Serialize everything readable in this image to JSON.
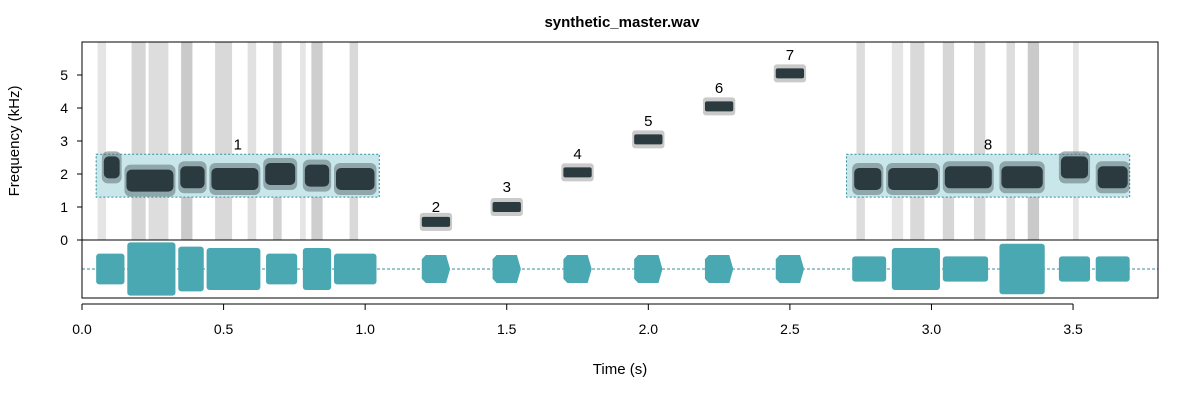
{
  "chart_data": {
    "type": "spectrogram",
    "title": "synthetic_master.wav",
    "xlabel": "Time (s)",
    "ylabel": "Frequency (kHz)",
    "xlim": [
      0.0,
      3.8
    ],
    "ylim": [
      0,
      6
    ],
    "x_ticks": [
      "0.0",
      "0.5",
      "1.0",
      "1.5",
      "2.0",
      "2.5",
      "3.0",
      "3.5"
    ],
    "y_ticks": [
      "0",
      "1",
      "2",
      "3",
      "4",
      "5"
    ],
    "x_tick_values": [
      0.0,
      0.5,
      1.0,
      1.5,
      2.0,
      2.5,
      3.0,
      3.5
    ],
    "y_tick_values": [
      0,
      1,
      2,
      3,
      4,
      5
    ],
    "annotations": [
      {
        "label": "1",
        "x": 0.55,
        "y": 2.9
      },
      {
        "label": "2",
        "x": 1.25,
        "y": 1.0
      },
      {
        "label": "3",
        "x": 1.5,
        "y": 1.6
      },
      {
        "label": "4",
        "x": 1.75,
        "y": 2.6
      },
      {
        "label": "5",
        "x": 2.0,
        "y": 3.6
      },
      {
        "label": "6",
        "x": 2.25,
        "y": 4.6
      },
      {
        "label": "7",
        "x": 2.5,
        "y": 5.6
      },
      {
        "label": "8",
        "x": 3.2,
        "y": 2.9
      }
    ],
    "regions": [
      {
        "t0": 0.05,
        "t1": 1.05,
        "f0": 1.3,
        "f1": 2.6
      },
      {
        "t0": 2.7,
        "t1": 3.7,
        "f0": 1.3,
        "f1": 2.6
      }
    ],
    "tones": [
      {
        "t0": 1.2,
        "t1": 1.3,
        "f": 0.55
      },
      {
        "t0": 1.45,
        "t1": 1.55,
        "f": 1.0
      },
      {
        "t0": 1.7,
        "t1": 1.8,
        "f": 2.05
      },
      {
        "t0": 1.95,
        "t1": 2.05,
        "f": 3.05
      },
      {
        "t0": 2.2,
        "t1": 2.3,
        "f": 4.05
      },
      {
        "t0": 2.45,
        "t1": 2.55,
        "f": 5.05
      }
    ],
    "syllables_1": [
      {
        "t0": 0.07,
        "t1": 0.14,
        "f": 2.2
      },
      {
        "t0": 0.15,
        "t1": 0.33,
        "f": 1.8
      },
      {
        "t0": 0.34,
        "t1": 0.44,
        "f": 1.9
      },
      {
        "t0": 0.45,
        "t1": 0.63,
        "f": 1.85
      },
      {
        "t0": 0.64,
        "t1": 0.76,
        "f": 2.0
      },
      {
        "t0": 0.78,
        "t1": 0.88,
        "f": 1.95
      },
      {
        "t0": 0.89,
        "t1": 1.04,
        "f": 1.85
      }
    ],
    "syllables_8": [
      {
        "t0": 2.72,
        "t1": 2.83,
        "f": 1.85
      },
      {
        "t0": 2.84,
        "t1": 3.03,
        "f": 1.85
      },
      {
        "t0": 3.04,
        "t1": 3.22,
        "f": 1.9
      },
      {
        "t0": 3.24,
        "t1": 3.4,
        "f": 1.9
      },
      {
        "t0": 3.45,
        "t1": 3.56,
        "f": 2.2
      },
      {
        "t0": 3.58,
        "t1": 3.7,
        "f": 1.9
      }
    ],
    "noise_columns": [
      {
        "t": 0.07,
        "w": 0.03,
        "level": 0.35
      },
      {
        "t": 0.2,
        "w": 0.05,
        "level": 0.55
      },
      {
        "t": 0.27,
        "w": 0.07,
        "level": 0.45
      },
      {
        "t": 0.37,
        "w": 0.04,
        "level": 0.7
      },
      {
        "t": 0.5,
        "w": 0.06,
        "level": 0.5
      },
      {
        "t": 0.6,
        "w": 0.03,
        "level": 0.4
      },
      {
        "t": 0.69,
        "w": 0.03,
        "level": 0.6
      },
      {
        "t": 0.78,
        "w": 0.02,
        "level": 0.35
      },
      {
        "t": 0.83,
        "w": 0.04,
        "level": 0.65
      },
      {
        "t": 0.96,
        "w": 0.03,
        "level": 0.5
      },
      {
        "t": 2.75,
        "w": 0.03,
        "level": 0.45
      },
      {
        "t": 2.88,
        "w": 0.04,
        "level": 0.35
      },
      {
        "t": 2.95,
        "w": 0.05,
        "level": 0.5
      },
      {
        "t": 3.06,
        "w": 0.04,
        "level": 0.55
      },
      {
        "t": 3.17,
        "w": 0.04,
        "level": 0.5
      },
      {
        "t": 3.28,
        "w": 0.03,
        "level": 0.45
      },
      {
        "t": 3.36,
        "w": 0.04,
        "level": 0.7
      },
      {
        "t": 3.51,
        "w": 0.02,
        "level": 0.35
      }
    ],
    "waveform_blocks": [
      {
        "t0": 0.05,
        "t1": 0.15,
        "amp": 0.55
      },
      {
        "t0": 0.16,
        "t1": 0.33,
        "amp": 0.95
      },
      {
        "t0": 0.34,
        "t1": 0.43,
        "amp": 0.8
      },
      {
        "t0": 0.44,
        "t1": 0.63,
        "amp": 0.75
      },
      {
        "t0": 0.65,
        "t1": 0.76,
        "amp": 0.55
      },
      {
        "t0": 0.78,
        "t1": 0.88,
        "amp": 0.75
      },
      {
        "t0": 0.89,
        "t1": 1.04,
        "amp": 0.55
      },
      {
        "t0": 1.2,
        "t1": 1.3,
        "amp": 0.5
      },
      {
        "t0": 1.45,
        "t1": 1.55,
        "amp": 0.5
      },
      {
        "t0": 1.7,
        "t1": 1.8,
        "amp": 0.5
      },
      {
        "t0": 1.95,
        "t1": 2.05,
        "amp": 0.5
      },
      {
        "t0": 2.2,
        "t1": 2.3,
        "amp": 0.5
      },
      {
        "t0": 2.45,
        "t1": 2.55,
        "amp": 0.5
      },
      {
        "t0": 2.72,
        "t1": 2.84,
        "amp": 0.45
      },
      {
        "t0": 2.86,
        "t1": 3.03,
        "amp": 0.75
      },
      {
        "t0": 3.04,
        "t1": 3.2,
        "amp": 0.45
      },
      {
        "t0": 3.24,
        "t1": 3.4,
        "amp": 0.9
      },
      {
        "t0": 3.45,
        "t1": 3.56,
        "amp": 0.45
      },
      {
        "t0": 3.58,
        "t1": 3.7,
        "amp": 0.45
      }
    ],
    "colors": {
      "frame": "#000000",
      "region_fill": "#c9e6ea",
      "region_stroke": "#2f8f9a",
      "syllable": "#2b3a3f",
      "syllable_light": "#5f7377",
      "noise": "#b4b4b4",
      "waveform": "#4aa8b3",
      "waveform_dark": "#3a8d98"
    }
  }
}
